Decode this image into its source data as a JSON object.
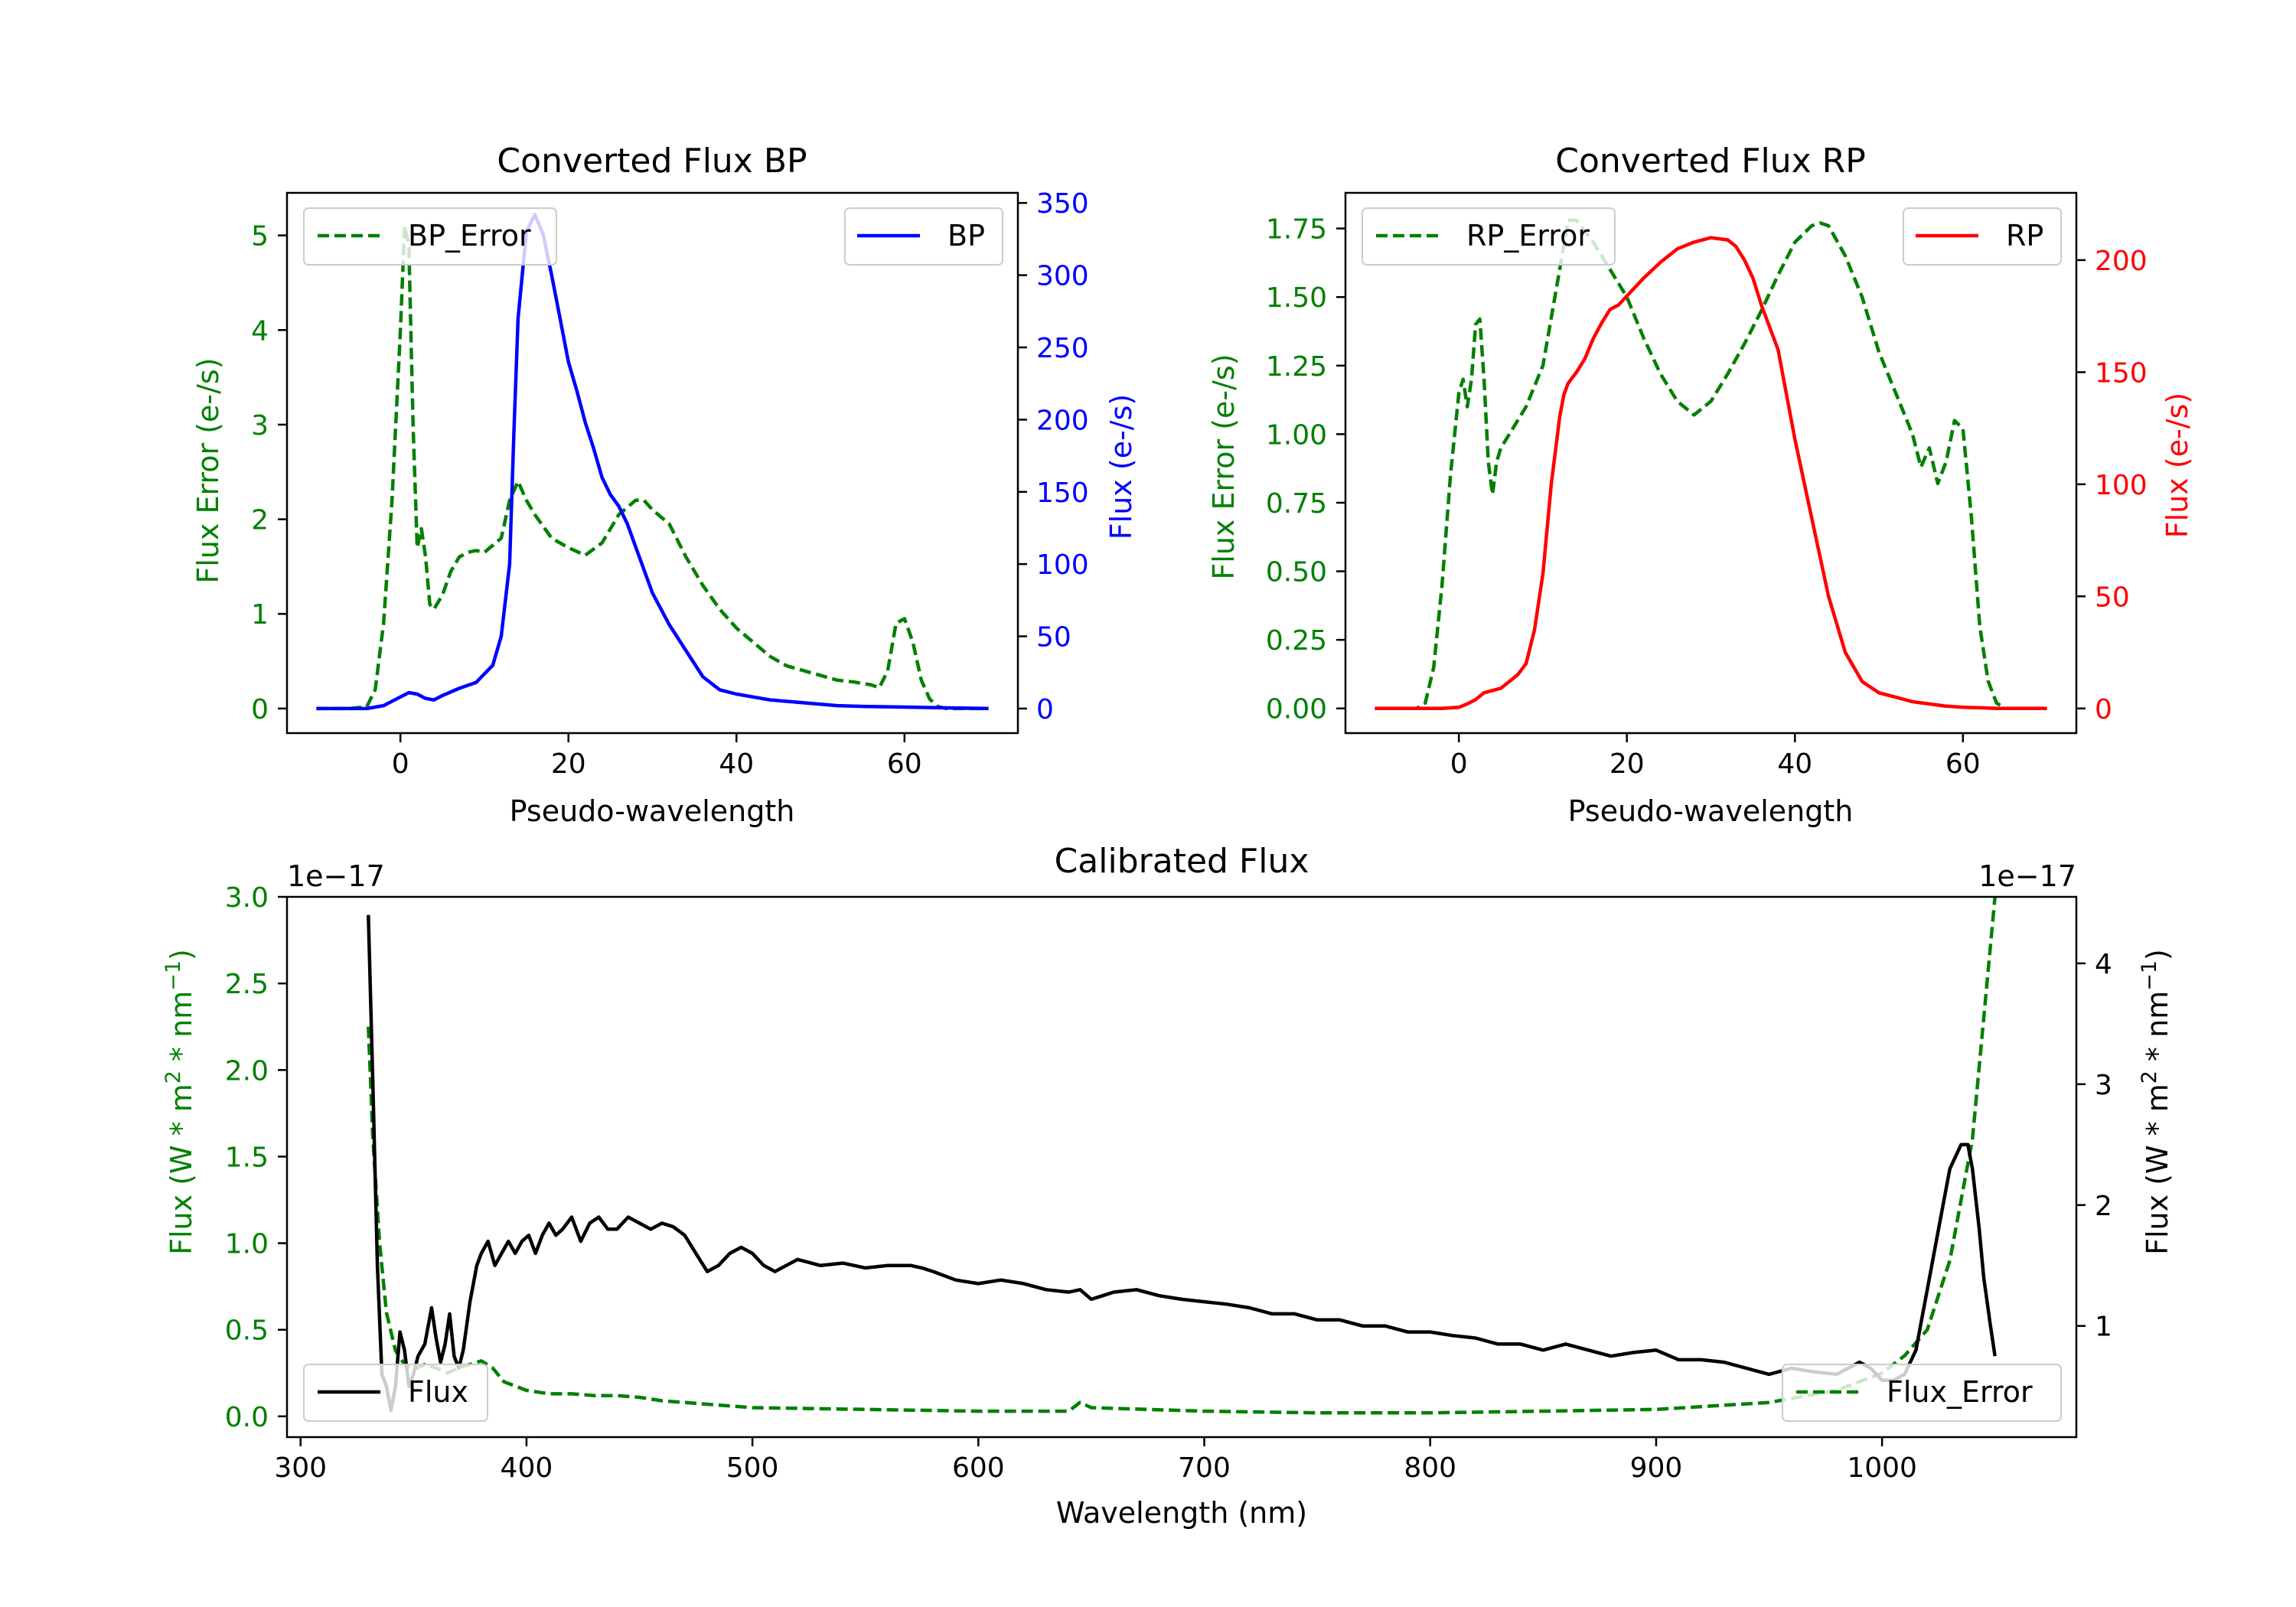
{
  "colors": {
    "bp": "#0000ff",
    "rp": "#ff0000",
    "error": "#008000",
    "flux": "#000000",
    "axis": "#000000"
  },
  "chart_data": [
    {
      "id": "bp",
      "type": "line",
      "title": "Converted Flux BP",
      "xlabel": "Pseudo-wavelength",
      "ylabel_left": "Flux Error (e-/s)",
      "ylabel_right": "Flux (e-/s)",
      "xlim": [
        -13.5,
        73.5
      ],
      "ylim_left": [
        -0.26,
        5.45
      ],
      "ylim_right": [
        -17,
        357
      ],
      "x_ticks": [
        0,
        20,
        40,
        60
      ],
      "y_ticks_left": [
        0,
        1,
        2,
        3,
        4,
        5
      ],
      "y_ticks_right": [
        0,
        50,
        100,
        150,
        200,
        250,
        300,
        350
      ],
      "x_tick_labels": [
        "0",
        "20",
        "40",
        "60"
      ],
      "y_tick_labels_left": [
        "0",
        "1",
        "2",
        "3",
        "4",
        "5"
      ],
      "y_tick_labels_right": [
        "0",
        "50",
        "100",
        "150",
        "200",
        "250",
        "300",
        "350"
      ],
      "legend": {
        "error_label": "BP_Error",
        "flux_label": "BP",
        "error_loc": "upper-left",
        "flux_loc": "upper-right"
      },
      "series": [
        {
          "name": "BP_Error",
          "axis": "left",
          "style": "dashed",
          "x": [
            -10,
            -6,
            -4,
            -3,
            -2,
            -1,
            0,
            0.5,
            1,
            1.5,
            2,
            2.5,
            3,
            3.5,
            4,
            5,
            6,
            7,
            8,
            9,
            10,
            12,
            13,
            14,
            15,
            16,
            18,
            20,
            22,
            24,
            26,
            28,
            29,
            30,
            32,
            34,
            36,
            38,
            40,
            42,
            44,
            46,
            48,
            50,
            52,
            54,
            56,
            57,
            58,
            59,
            60,
            61,
            62,
            63,
            64,
            65,
            70
          ],
          "y": [
            0,
            0,
            0.02,
            0.2,
            0.9,
            2.2,
            4.0,
            5.1,
            4.9,
            3.0,
            1.7,
            1.9,
            1.6,
            1.1,
            1.05,
            1.2,
            1.45,
            1.6,
            1.65,
            1.67,
            1.65,
            1.8,
            2.2,
            2.4,
            2.2,
            2.05,
            1.8,
            1.7,
            1.62,
            1.75,
            2.05,
            2.2,
            2.2,
            2.1,
            1.95,
            1.6,
            1.3,
            1.05,
            0.85,
            0.7,
            0.55,
            0.45,
            0.4,
            0.35,
            0.3,
            0.28,
            0.25,
            0.22,
            0.4,
            0.9,
            0.95,
            0.7,
            0.3,
            0.1,
            0.02,
            0,
            0
          ]
        },
        {
          "name": "BP",
          "axis": "right",
          "style": "solid",
          "x": [
            -10,
            -4,
            -2,
            0,
            1,
            2,
            3,
            4,
            5,
            7,
            9,
            11,
            12,
            13,
            13.5,
            14,
            15,
            16,
            17,
            18,
            19,
            20,
            21,
            22,
            23,
            24,
            25,
            26,
            27,
            28,
            30,
            32,
            34,
            36,
            38,
            40,
            42,
            44,
            46,
            48,
            50,
            52,
            55,
            60,
            65,
            70
          ],
          "y": [
            0,
            0,
            2,
            8,
            11,
            10,
            7,
            6,
            9,
            14,
            18,
            30,
            50,
            100,
            190,
            270,
            330,
            342,
            328,
            300,
            270,
            240,
            220,
            198,
            180,
            160,
            148,
            140,
            128,
            112,
            80,
            58,
            40,
            22,
            13,
            10,
            8,
            6,
            5,
            4,
            3,
            2,
            1.5,
            1,
            0.5,
            0
          ]
        }
      ]
    },
    {
      "id": "rp",
      "type": "line",
      "title": "Converted Flux RP",
      "xlabel": "Pseudo-wavelength",
      "ylabel_left": "Flux Error (e-/s)",
      "ylabel_right": "Flux (e-/s)",
      "xlim": [
        -13.5,
        73.5
      ],
      "ylim_left": [
        -0.09,
        1.88
      ],
      "ylim_right": [
        -11,
        230
      ],
      "x_ticks": [
        0,
        20,
        40,
        60
      ],
      "y_ticks_left": [
        0,
        0.25,
        0.5,
        0.75,
        1.0,
        1.25,
        1.5,
        1.75
      ],
      "y_ticks_right": [
        0,
        50,
        100,
        150,
        200
      ],
      "x_tick_labels": [
        "0",
        "20",
        "40",
        "60"
      ],
      "y_tick_labels_left": [
        "0.00",
        "0.25",
        "0.50",
        "0.75",
        "1.00",
        "1.25",
        "1.50",
        "1.75"
      ],
      "y_tick_labels_right": [
        "0",
        "50",
        "100",
        "150",
        "200"
      ],
      "legend": {
        "error_label": "RP_Error",
        "flux_label": "RP",
        "error_loc": "upper-left",
        "flux_loc": "upper-right"
      },
      "series": [
        {
          "name": "RP_Error",
          "axis": "left",
          "style": "dashed",
          "x": [
            -10,
            -5,
            -4,
            -3,
            -2,
            -1,
            0,
            0.5,
            1,
            1.5,
            2,
            2.5,
            3,
            3.5,
            4,
            4.5,
            5,
            6,
            8,
            10,
            12,
            13,
            14,
            16,
            18,
            20,
            22,
            24,
            26,
            28,
            30,
            32,
            34,
            36,
            38,
            40,
            42,
            43,
            44,
            46,
            48,
            50,
            52,
            54,
            55,
            56,
            57,
            58,
            59,
            60,
            61,
            62,
            63,
            64,
            65,
            70
          ],
          "y": [
            0,
            0,
            0.02,
            0.15,
            0.45,
            0.85,
            1.15,
            1.2,
            1.1,
            1.2,
            1.4,
            1.42,
            1.2,
            0.9,
            0.78,
            0.9,
            0.95,
            1.0,
            1.1,
            1.25,
            1.6,
            1.78,
            1.78,
            1.7,
            1.6,
            1.5,
            1.35,
            1.22,
            1.12,
            1.07,
            1.12,
            1.22,
            1.33,
            1.45,
            1.58,
            1.7,
            1.76,
            1.77,
            1.76,
            1.65,
            1.5,
            1.3,
            1.15,
            1.0,
            0.88,
            0.95,
            0.82,
            0.9,
            1.05,
            1.02,
            0.7,
            0.3,
            0.1,
            0.02,
            0,
            0
          ]
        },
        {
          "name": "RP",
          "axis": "right",
          "style": "solid",
          "x": [
            -10,
            -2,
            0,
            1,
            2,
            3,
            4,
            5,
            6,
            7,
            8,
            9,
            10,
            11,
            12,
            12.5,
            13,
            14,
            15,
            16,
            17,
            18,
            19,
            20,
            22,
            24,
            26,
            28,
            30,
            32,
            33,
            34,
            35,
            36,
            38,
            40,
            42,
            44,
            46,
            48,
            50,
            52,
            54,
            56,
            58,
            60,
            62,
            64,
            70
          ],
          "y": [
            0,
            0,
            0.5,
            2,
            4,
            7,
            8,
            9,
            12,
            15,
            20,
            35,
            60,
            100,
            130,
            140,
            145,
            150,
            156,
            165,
            172,
            178,
            180,
            184,
            192,
            199,
            205,
            208,
            210,
            209,
            206,
            200,
            192,
            180,
            160,
            120,
            85,
            50,
            25,
            12,
            7,
            5,
            3,
            2,
            1,
            0.5,
            0.3,
            0,
            0
          ]
        }
      ]
    },
    {
      "id": "cal",
      "type": "line",
      "title": "Calibrated Flux",
      "xlabel": "Wavelength (nm)",
      "ylabel_left_main": "Flux (W * m",
      "ylabel_left_rest": " * nm",
      "ylabel_right_main": "Flux (W * m",
      "ylabel_right_rest": " * nm",
      "sup_2": "2",
      "sup_m1": "−1",
      "close_paren": ")",
      "offset_left": "1e−17",
      "offset_right": "1e−17",
      "xlim": [
        294,
        1086
      ],
      "ylim_left": [
        -0.12,
        3.0
      ],
      "ylim_right": [
        0.08,
        4.55
      ],
      "x_ticks": [
        300,
        400,
        500,
        600,
        700,
        800,
        900,
        1000
      ],
      "y_ticks_left": [
        0,
        0.5,
        1.0,
        1.5,
        2.0,
        2.5,
        3.0
      ],
      "y_ticks_right": [
        1,
        2,
        3,
        4
      ],
      "x_tick_labels": [
        "300",
        "400",
        "500",
        "600",
        "700",
        "800",
        "900",
        "1000"
      ],
      "y_tick_labels_left": [
        "0.0",
        "0.5",
        "1.0",
        "1.5",
        "2.0",
        "2.5",
        "3.0"
      ],
      "y_tick_labels_right": [
        "1",
        "2",
        "3",
        "4"
      ],
      "legend": {
        "error_label": "Flux_Error",
        "flux_label": "Flux",
        "error_loc": "lower-right",
        "flux_loc": "lower-left"
      },
      "series": [
        {
          "name": "Flux_Error",
          "axis": "left",
          "style": "dashed",
          "x": [
            330,
            332,
            335,
            338,
            342,
            346,
            350,
            355,
            360,
            365,
            370,
            375,
            380,
            385,
            390,
            400,
            410,
            420,
            430,
            440,
            450,
            460,
            480,
            500,
            550,
            600,
            640,
            645,
            650,
            700,
            750,
            800,
            850,
            900,
            950,
            980,
            1000,
            1010,
            1020,
            1030,
            1040,
            1045,
            1050
          ],
          "y": [
            2.25,
            1.6,
            1.0,
            0.6,
            0.38,
            0.3,
            0.27,
            0.3,
            0.28,
            0.25,
            0.28,
            0.3,
            0.32,
            0.28,
            0.2,
            0.15,
            0.13,
            0.13,
            0.12,
            0.12,
            0.11,
            0.09,
            0.07,
            0.05,
            0.04,
            0.03,
            0.03,
            0.08,
            0.05,
            0.03,
            0.02,
            0.02,
            0.03,
            0.04,
            0.08,
            0.15,
            0.25,
            0.35,
            0.5,
            0.9,
            1.6,
            2.3,
            3.0
          ]
        },
        {
          "name": "Flux",
          "axis": "right",
          "style": "solid",
          "x": [
            330,
            332,
            334,
            336,
            338,
            340,
            342,
            344,
            346,
            348,
            350,
            352,
            355,
            358,
            360,
            362,
            364,
            366,
            368,
            370,
            372,
            375,
            378,
            380,
            383,
            386,
            389,
            392,
            395,
            398,
            401,
            404,
            407,
            410,
            413,
            416,
            420,
            424,
            428,
            432,
            436,
            440,
            445,
            450,
            455,
            460,
            465,
            470,
            475,
            480,
            485,
            490,
            495,
            500,
            505,
            510,
            515,
            520,
            530,
            540,
            550,
            560,
            570,
            575,
            580,
            590,
            600,
            610,
            620,
            630,
            640,
            645,
            650,
            655,
            660,
            670,
            680,
            690,
            700,
            710,
            720,
            730,
            740,
            750,
            760,
            770,
            780,
            790,
            800,
            810,
            820,
            830,
            840,
            850,
            860,
            870,
            880,
            890,
            900,
            910,
            920,
            930,
            940,
            950,
            960,
            970,
            980,
            990,
            995,
            1000,
            1005,
            1010,
            1015,
            1020,
            1025,
            1030,
            1035,
            1038,
            1040,
            1043,
            1045,
            1048,
            1050
          ],
          "y": [
            4.4,
            3.0,
            1.5,
            0.6,
            0.5,
            0.3,
            0.5,
            0.95,
            0.8,
            0.5,
            0.6,
            0.75,
            0.85,
            1.15,
            0.9,
            0.7,
            0.85,
            1.1,
            0.75,
            0.65,
            0.8,
            1.2,
            1.5,
            1.6,
            1.7,
            1.5,
            1.6,
            1.7,
            1.6,
            1.7,
            1.75,
            1.6,
            1.75,
            1.85,
            1.75,
            1.8,
            1.9,
            1.7,
            1.85,
            1.9,
            1.8,
            1.8,
            1.9,
            1.85,
            1.8,
            1.85,
            1.82,
            1.75,
            1.6,
            1.45,
            1.5,
            1.6,
            1.65,
            1.6,
            1.5,
            1.45,
            1.5,
            1.55,
            1.5,
            1.52,
            1.48,
            1.5,
            1.5,
            1.48,
            1.45,
            1.38,
            1.35,
            1.38,
            1.35,
            1.3,
            1.28,
            1.3,
            1.22,
            1.25,
            1.28,
            1.3,
            1.25,
            1.22,
            1.2,
            1.18,
            1.15,
            1.1,
            1.1,
            1.05,
            1.05,
            1.0,
            1.0,
            0.95,
            0.95,
            0.92,
            0.9,
            0.85,
            0.85,
            0.8,
            0.85,
            0.8,
            0.75,
            0.78,
            0.8,
            0.72,
            0.72,
            0.7,
            0.65,
            0.6,
            0.65,
            0.62,
            0.6,
            0.7,
            0.65,
            0.55,
            0.55,
            0.6,
            0.8,
            1.3,
            1.8,
            2.3,
            2.5,
            2.5,
            2.3,
            1.8,
            1.4,
            1.0,
            0.75
          ]
        }
      ]
    }
  ]
}
